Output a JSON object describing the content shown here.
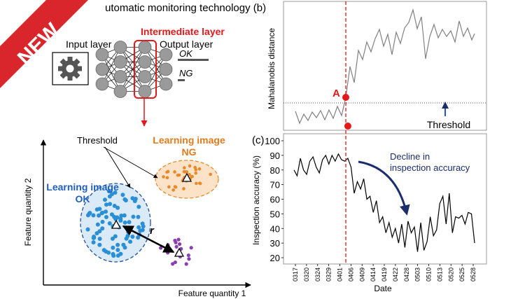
{
  "banner": {
    "text": "NEW",
    "color": "#d9262c"
  },
  "panel_a": {
    "title": "utomatic monitoring technology (b)",
    "network": {
      "input_label": "Input layer",
      "intermediate_label": "Intermediate layer",
      "output_label": "Output layer",
      "ok_label": "OK",
      "ng_label": "NG",
      "input_icon": "gear-icon",
      "layer_sizes": [
        3,
        4,
        4,
        3
      ]
    },
    "scatter": {
      "threshold_label": "Threshold",
      "ng_label_line1": "Learning image",
      "ng_label_line2": "NG",
      "ok_label_line1": "Learning image",
      "ok_label_line2": "OK",
      "distance_label": "r",
      "x_axis_label": "Feature quantity 1",
      "y_axis_label": "Feature quantity 2",
      "colors": {
        "ok": "#2b8fd6",
        "ok_fill": "#dbeaf7",
        "ok_text": "#1f5fbf",
        "ng": "#e8892b",
        "ng_fill": "#fce3c8",
        "ng_text": "#e07b1f",
        "other": "#8a3fb0"
      }
    }
  },
  "panel_b": {
    "y_axis_label": "Mahalanobis distance",
    "point_label": "A",
    "threshold_label": "Threshold",
    "colors": {
      "line": "#808080",
      "point": "#e3191c",
      "arrow": "#1a56d6"
    }
  },
  "panel_c": {
    "panel_label": "(c)",
    "annotation_line1": "Decline in",
    "annotation_line2": "inspection accuracy",
    "annotation_color": "#1b2d6b",
    "chart_data": {
      "type": "line",
      "xlabel": "Date",
      "ylabel": "Inspection accuracy (%)",
      "ylim": [
        20,
        100
      ],
      "yticks": [
        20,
        30,
        40,
        50,
        60,
        70,
        80,
        90,
        100
      ],
      "xticks": [
        "0317",
        "0320",
        "0324",
        "0329",
        "0401",
        "0406",
        "0409",
        "0414",
        "0419",
        "0422",
        "0428",
        "0503",
        "0510",
        "0513",
        "0520",
        "0525",
        "0528"
      ],
      "values": [
        80,
        76,
        88,
        80,
        77,
        86,
        89,
        82,
        78,
        87,
        90,
        84,
        90,
        86,
        91,
        87,
        86,
        88,
        82,
        64,
        72,
        67,
        74,
        60,
        62,
        51,
        59,
        44,
        48,
        37,
        44,
        34,
        40,
        30,
        43,
        27,
        45,
        37,
        41,
        24,
        44,
        25,
        31,
        48,
        35,
        39,
        57,
        62,
        43,
        64,
        37,
        48,
        47,
        49,
        43,
        51,
        50,
        30
      ],
      "event_index": 17
    }
  }
}
